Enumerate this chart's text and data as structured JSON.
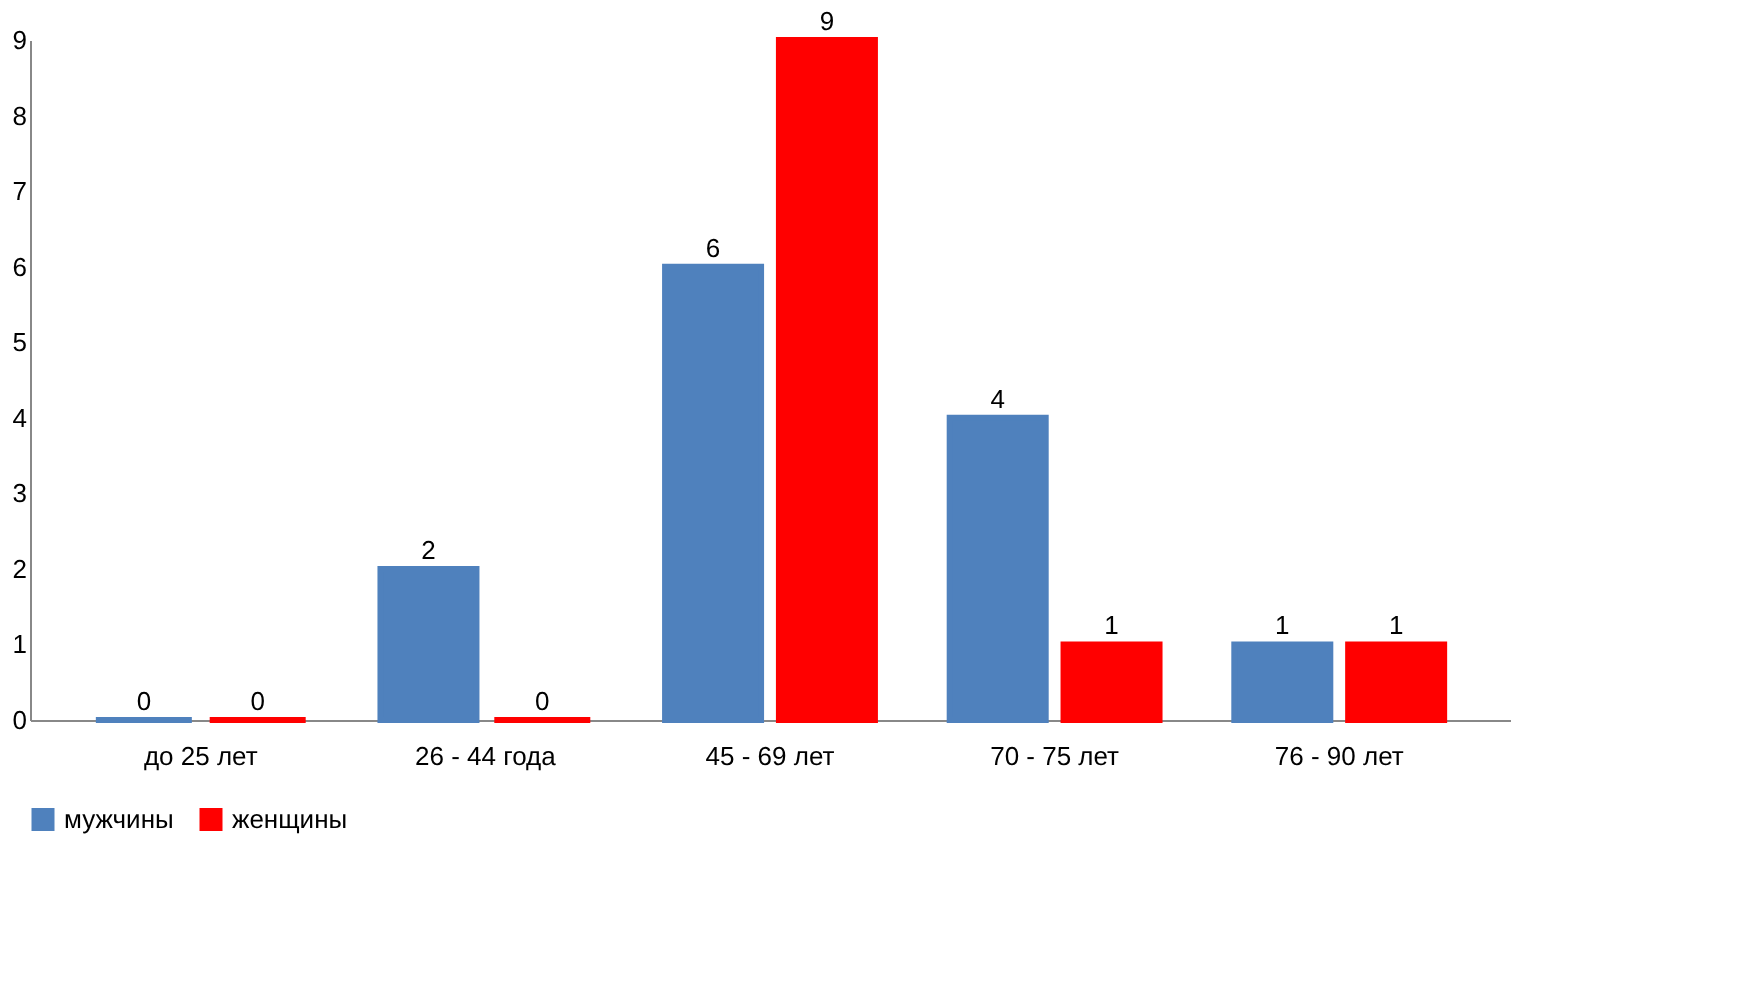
{
  "chart_data": {
    "type": "bar",
    "categories": [
      "до 25 лет",
      "26 - 44 года",
      "45 - 69 лет",
      "70 - 75 лет",
      "76 - 90 лет"
    ],
    "series": [
      {
        "name": "мужчины",
        "color": "#4f81bd",
        "values": [
          0,
          2,
          6,
          4,
          1
        ]
      },
      {
        "name": "женщины",
        "color": "#ff0000",
        "values": [
          0,
          0,
          9,
          1,
          1
        ]
      }
    ],
    "ylim": [
      0,
      9
    ],
    "yticks": [
      0,
      1,
      2,
      3,
      4,
      5,
      6,
      7,
      8,
      9
    ],
    "grid": false,
    "legend": "bottom",
    "data_labels": true
  }
}
